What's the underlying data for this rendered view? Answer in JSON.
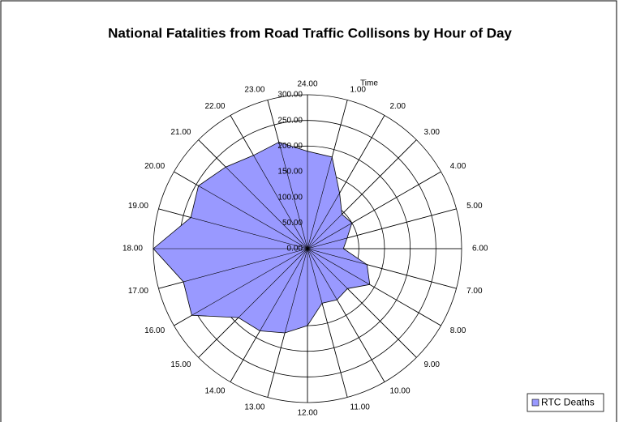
{
  "chart_data": {
    "type": "radar",
    "title": "National Fatalities from Road Traffic Collisons by Hour of Day",
    "axis_label": "Time",
    "categories": [
      "24.00",
      "1.00",
      "2.00",
      "3.00",
      "4.00",
      "5.00",
      "6.00",
      "7.00",
      "8.00",
      "9.00",
      "10.00",
      "11.00",
      "12.00",
      "13.00",
      "14.00",
      "15.00",
      "16.00",
      "17.00",
      "18.00",
      "19.00",
      "20.00",
      "21.00",
      "22.00",
      "23.00"
    ],
    "series": [
      {
        "name": "RTC Deaths",
        "color": "#9999ff",
        "values": [
          190,
          185,
          125,
          95,
          100,
          80,
          70,
          120,
          140,
          110,
          115,
          110,
          150,
          170,
          185,
          190,
          260,
          250,
          300,
          235,
          245,
          225,
          210,
          215
        ]
      }
    ],
    "ylim": [
      0,
      300
    ],
    "yticks": [
      {
        "value": 0,
        "label": "0.00"
      },
      {
        "value": 50,
        "label": "50.00"
      },
      {
        "value": 100,
        "label": "100.00"
      },
      {
        "value": 150,
        "label": "150.00"
      },
      {
        "value": 200,
        "label": "200.00"
      },
      {
        "value": 250,
        "label": "250.00"
      },
      {
        "value": 300,
        "label": "300.00"
      }
    ],
    "legend": "bottom-right"
  }
}
